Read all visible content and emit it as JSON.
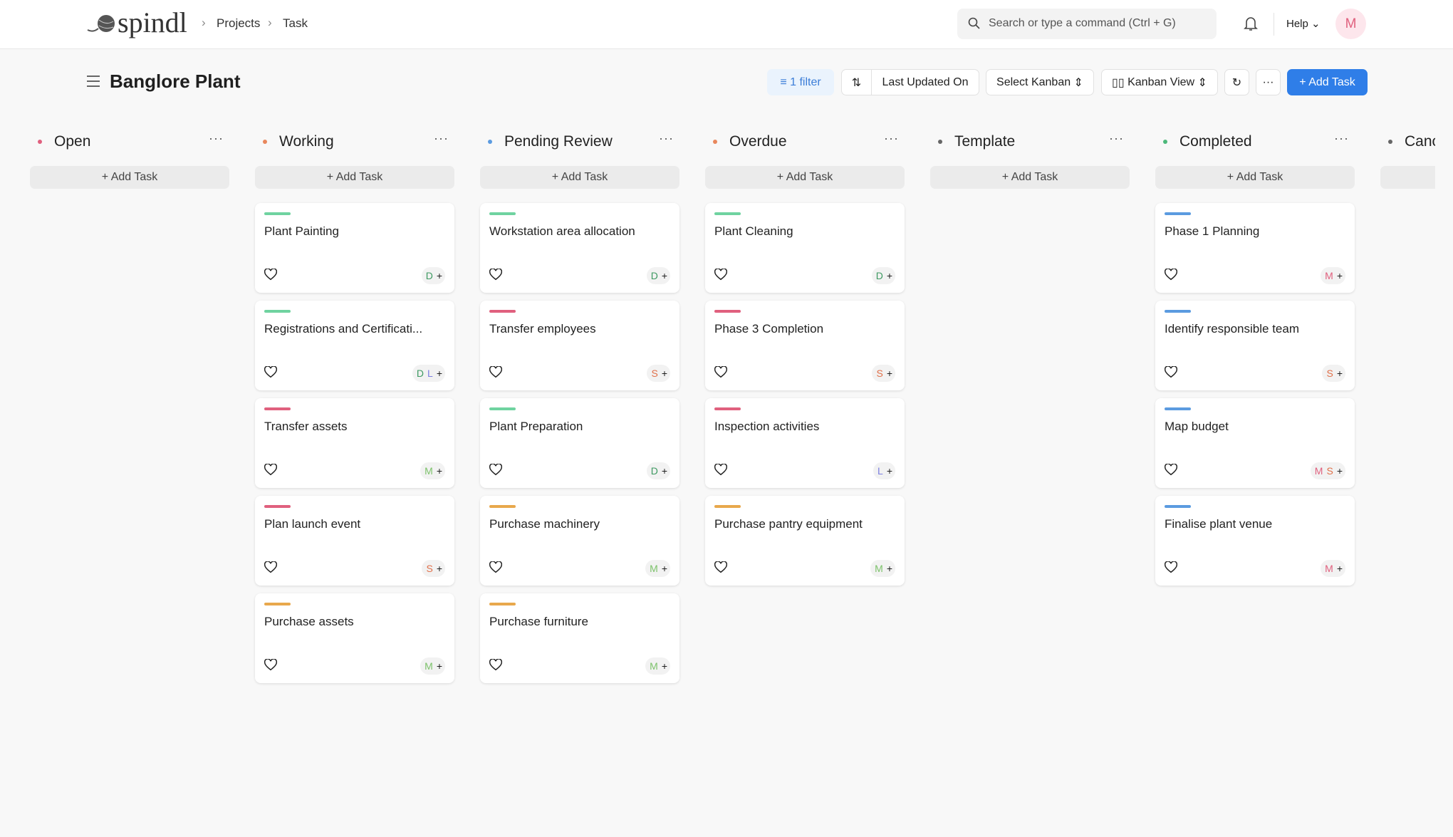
{
  "header": {
    "logo": "spindl",
    "breadcrumbs": [
      "Projects",
      "Task"
    ],
    "search_placeholder": "Search or type a command (Ctrl + G)",
    "help": "Help",
    "avatar": "M"
  },
  "toolbar": {
    "title": "Banglore Plant",
    "filter": "1 filter",
    "sort": "Last Updated On",
    "select_kanban": "Select Kanban",
    "view": "Kanban View",
    "add_task": "+ Add Task"
  },
  "columns": [
    {
      "name": "Open",
      "color": "#e0607e",
      "add_label": "+ Add Task",
      "cards": []
    },
    {
      "name": "Working",
      "color": "#e8875c",
      "add_label": "+ Add Task",
      "cards": [
        {
          "title": "Plant Painting",
          "color": "#6fd3a0",
          "assignees": [
            {
              "initial": "D",
              "color": "#3f9a63"
            }
          ]
        },
        {
          "title": "Registrations and Certificati...",
          "color": "#6fd3a0",
          "assignees": [
            {
              "initial": "D",
              "color": "#3f9a63"
            },
            {
              "initial": "L",
              "color": "#7b7fe0"
            }
          ]
        },
        {
          "title": "Transfer assets",
          "color": "#e0607e",
          "assignees": [
            {
              "initial": "M",
              "color": "#7cc26a"
            }
          ]
        },
        {
          "title": "Plan launch event",
          "color": "#e0607e",
          "assignees": [
            {
              "initial": "S",
              "color": "#e0704a"
            }
          ]
        },
        {
          "title": "Purchase assets",
          "color": "#e8a84c",
          "assignees": [
            {
              "initial": "M",
              "color": "#7cc26a"
            }
          ]
        }
      ]
    },
    {
      "name": "Pending Review",
      "color": "#5b9be0",
      "add_label": "+ Add Task",
      "cards": [
        {
          "title": "Workstation area allocation",
          "color": "#6fd3a0",
          "assignees": [
            {
              "initial": "D",
              "color": "#3f9a63"
            }
          ]
        },
        {
          "title": "Transfer employees",
          "color": "#e0607e",
          "assignees": [
            {
              "initial": "S",
              "color": "#e0704a"
            }
          ]
        },
        {
          "title": "Plant Preparation",
          "color": "#6fd3a0",
          "assignees": [
            {
              "initial": "D",
              "color": "#3f9a63"
            }
          ]
        },
        {
          "title": "Purchase machinery",
          "color": "#e8a84c",
          "assignees": [
            {
              "initial": "M",
              "color": "#7cc26a"
            }
          ]
        },
        {
          "title": "Purchase furniture",
          "color": "#e8a84c",
          "assignees": [
            {
              "initial": "M",
              "color": "#7cc26a"
            }
          ]
        }
      ]
    },
    {
      "name": "Overdue",
      "color": "#e8875c",
      "add_label": "+ Add Task",
      "cards": [
        {
          "title": "Plant Cleaning",
          "color": "#6fd3a0",
          "assignees": [
            {
              "initial": "D",
              "color": "#3f9a63"
            }
          ]
        },
        {
          "title": "Phase 3 Completion",
          "color": "#e0607e",
          "assignees": [
            {
              "initial": "S",
              "color": "#e0704a"
            }
          ]
        },
        {
          "title": "Inspection activities",
          "color": "#e0607e",
          "assignees": [
            {
              "initial": "L",
              "color": "#7b7fe0"
            }
          ]
        },
        {
          "title": "Purchase pantry equipment",
          "color": "#e8a84c",
          "assignees": [
            {
              "initial": "M",
              "color": "#7cc26a"
            }
          ]
        }
      ]
    },
    {
      "name": "Template",
      "color": "#666666",
      "add_label": "+ Add Task",
      "cards": []
    },
    {
      "name": "Completed",
      "color": "#4cb87a",
      "add_label": "+ Add Task",
      "cards": [
        {
          "title": "Phase 1 Planning",
          "color": "#5b9be0",
          "assignees": [
            {
              "initial": "M",
              "color": "#e0607e"
            }
          ]
        },
        {
          "title": "Identify responsible team",
          "color": "#5b9be0",
          "assignees": [
            {
              "initial": "S",
              "color": "#e0704a"
            }
          ]
        },
        {
          "title": "Map budget",
          "color": "#5b9be0",
          "assignees": [
            {
              "initial": "M",
              "color": "#e0607e"
            },
            {
              "initial": "S",
              "color": "#e0704a"
            }
          ]
        },
        {
          "title": "Finalise plant venue",
          "color": "#5b9be0",
          "assignees": [
            {
              "initial": "M",
              "color": "#e0607e"
            }
          ]
        }
      ]
    },
    {
      "name": "Canc",
      "color": "#666666",
      "cards": []
    }
  ]
}
